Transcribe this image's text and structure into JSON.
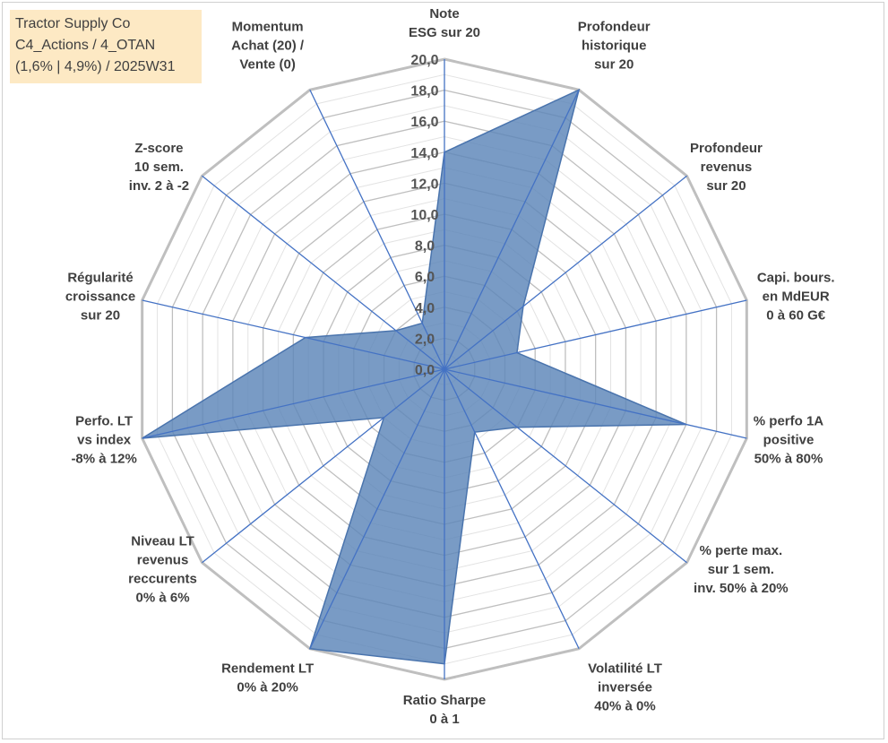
{
  "info": {
    "line1": "Tractor Supply Co",
    "line2": "C4_Actions / 4_OTAN",
    "line3": "(1,6% | 4,9%) / 2025W31"
  },
  "chart_data": {
    "type": "radar",
    "rmin": 0,
    "rmax": 20,
    "tick_step": 2,
    "tick_labels": [
      "0,0",
      "2,0",
      "4,0",
      "6,0",
      "8,0",
      "10,0",
      "12,0",
      "14,0",
      "16,0",
      "18,0",
      "20,0"
    ],
    "grid": true,
    "axes": [
      {
        "label": [
          "Note",
          "ESG sur 20"
        ],
        "value": 14.0
      },
      {
        "label": [
          "Profondeur",
          "historique",
          "sur 20"
        ],
        "value": 20.0
      },
      {
        "label": [
          "Profondeur",
          "revenus",
          "sur 20"
        ],
        "value": 6.5
      },
      {
        "label": [
          "Capi. bours.",
          "en MdEUR",
          "0 à 60 G€"
        ],
        "value": 4.8
      },
      {
        "label": [
          "% perfo 1A",
          "positive",
          "50% à 80%"
        ],
        "value": 16.0
      },
      {
        "label": [
          "% perte max.",
          "sur 1 sem.",
          "inv. 50% à 20%"
        ],
        "value": 6.0
      },
      {
        "label": [
          "Volatilité LT",
          "inversée",
          "40% à 0%"
        ],
        "value": 4.5
      },
      {
        "label": [
          "Ratio Sharpe",
          "0 à 1"
        ],
        "value": 19.0
      },
      {
        "label": [
          "Rendement LT",
          "0% à 20%"
        ],
        "value": 20.0
      },
      {
        "label": [
          "Niveau LT",
          "revenus",
          "reccurents",
          "0% à 6%"
        ],
        "value": 5.0
      },
      {
        "label": [
          "Perfo. LT",
          "vs index",
          "-8% à 12%"
        ],
        "value": 20.0
      },
      {
        "label": [
          "Régularité",
          "croissance",
          "sur 20"
        ],
        "value": 9.2
      },
      {
        "label": [
          "Z-score",
          "10 sem.",
          "inv. 2 à -2"
        ],
        "value": 4.0
      },
      {
        "label": [
          "Momentum",
          "Achat (20) /",
          "Vente (0)"
        ],
        "value": 3.3
      }
    ],
    "colors": {
      "fill": "#5b85b8",
      "stroke": "#4a74ad",
      "spoke": "#4472c4",
      "grid_major": "#bfbfbf",
      "grid_minor": "#e3e3e3"
    }
  }
}
